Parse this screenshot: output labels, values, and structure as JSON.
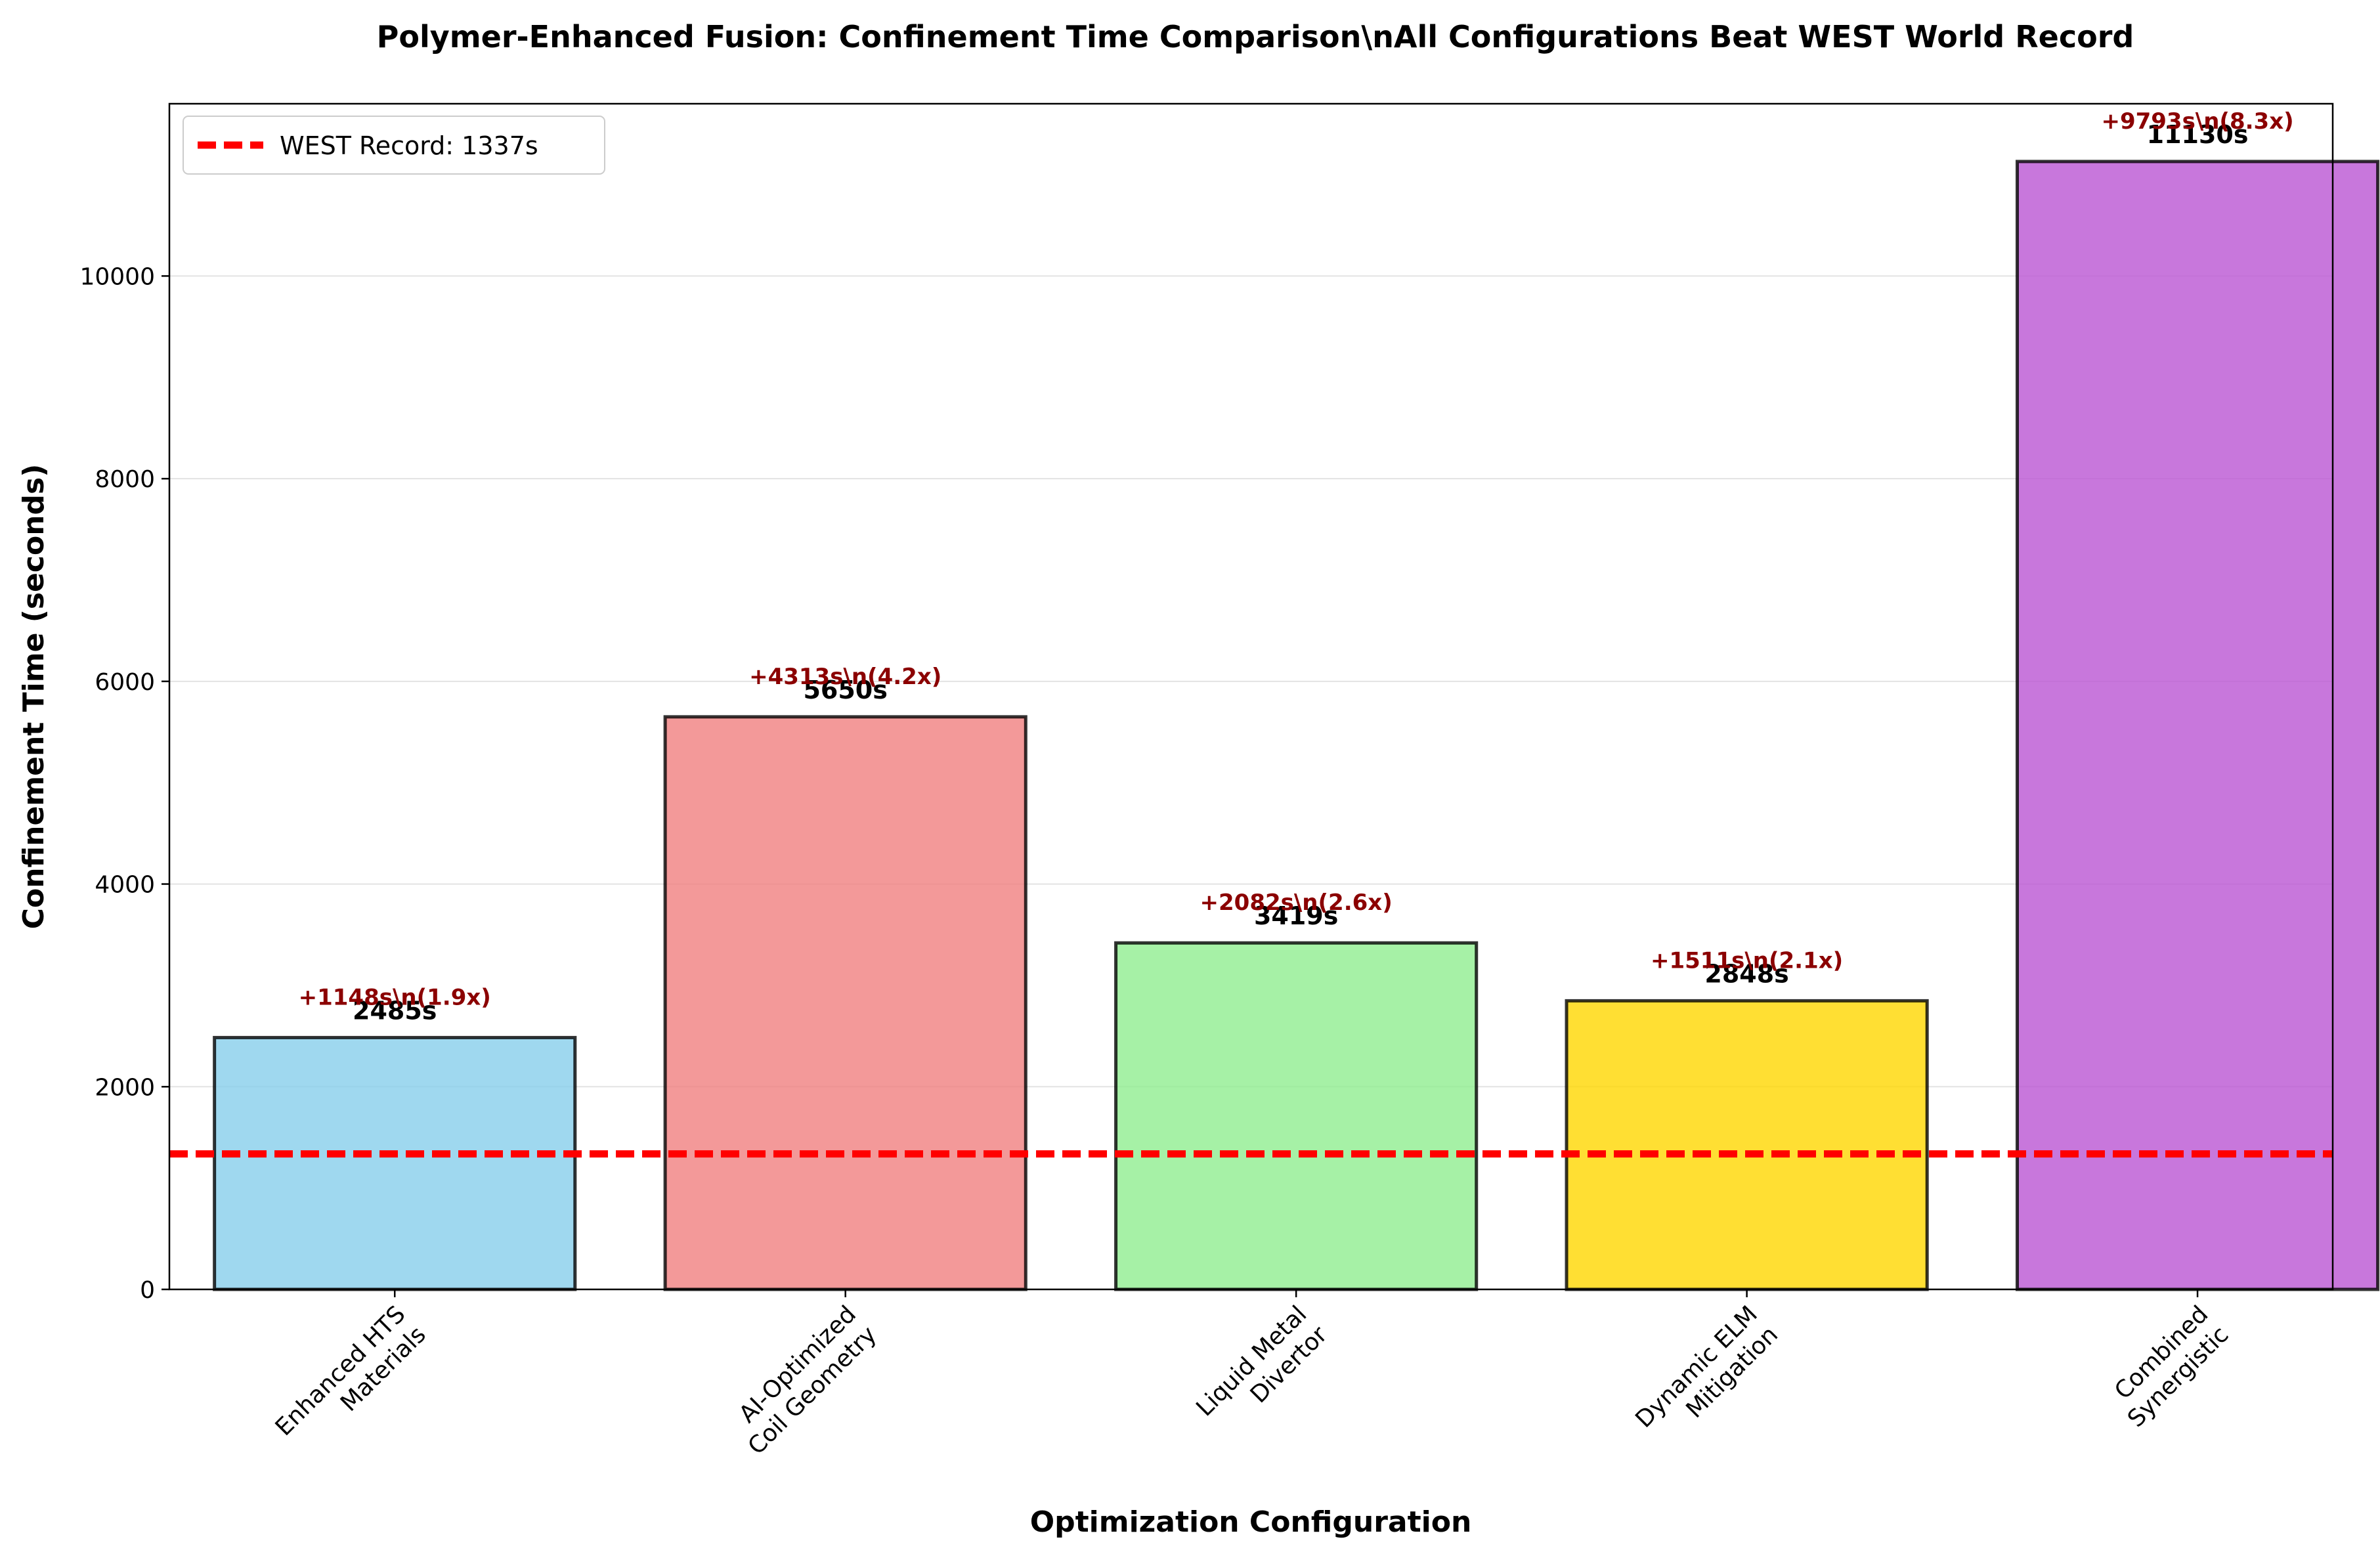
{
  "chart_data": {
    "type": "bar",
    "title": "Polymer-Enhanced Fusion: Confinement Time Comparison\\nAll Configurations Beat WEST World Record",
    "xlabel": "Optimization Configuration",
    "ylabel": "Confinement Time (seconds)",
    "ylim": [
      0,
      11700
    ],
    "yticks": [
      0,
      2000,
      4000,
      6000,
      8000,
      10000
    ],
    "grid": "horizontal",
    "legend_position": "top-left",
    "categories": [
      [
        "Enhanced HTS",
        "Materials"
      ],
      [
        "AI-Optimized",
        "Coil Geometry"
      ],
      [
        "Liquid Metal",
        "Divertor"
      ],
      [
        "Dynamic ELM",
        "Mitigation"
      ],
      [
        "Combined",
        "Synergistic"
      ]
    ],
    "values": [
      2485,
      5650,
      3419,
      2848,
      11130
    ],
    "value_labels": [
      "2485s",
      "5650s",
      "3419s",
      "2848s",
      "11130s"
    ],
    "annotations": [
      "+1148s\\n(1.9x)",
      "+4313s\\n(4.2x)",
      "+2082s\\n(2.6x)",
      "+1511s\\n(2.1x)",
      "+9793s\\n(8.3x)"
    ],
    "colors": [
      "#87CEEB",
      "#F08080",
      "#90EE90",
      "#FFD700",
      "#BA55D3"
    ],
    "reference_line": {
      "label": "WEST Record: 1337s",
      "value": 1337,
      "color": "#FF0000",
      "style": "dashed"
    },
    "annotation_color": "#8B0000"
  }
}
